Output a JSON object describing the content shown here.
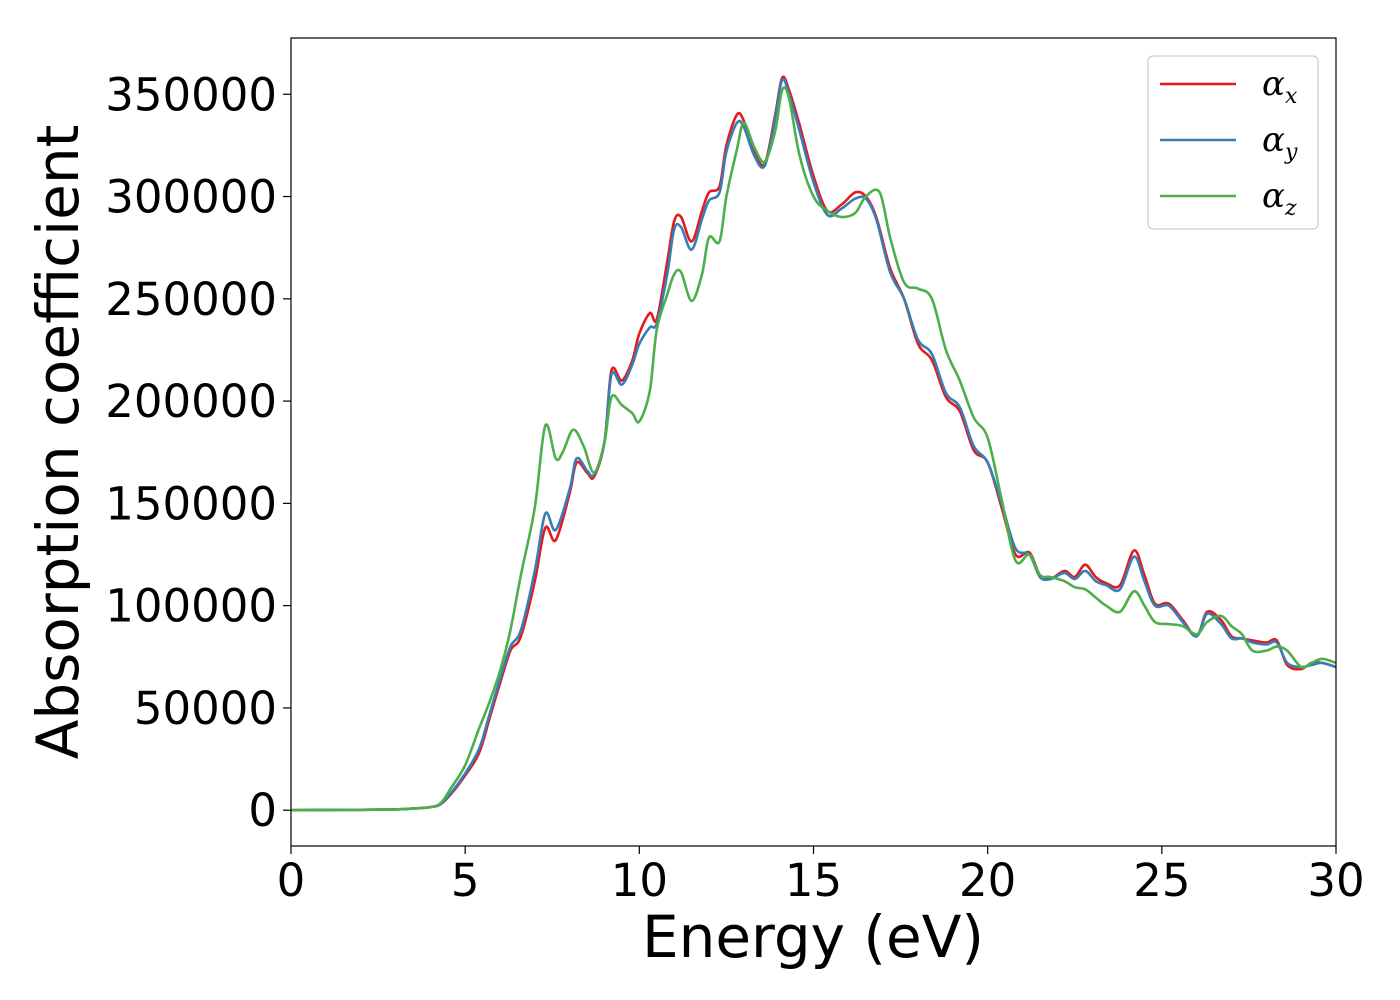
{
  "chart_data": {
    "type": "line",
    "title": "",
    "xlabel": "Energy (eV)",
    "ylabel": "Absorption coefficient",
    "xlim": [
      0,
      30
    ],
    "ylim": [
      -17500,
      377500
    ],
    "xticks": [
      0,
      5,
      10,
      15,
      20,
      25,
      30
    ],
    "yticks": [
      0,
      50000,
      100000,
      150000,
      200000,
      250000,
      300000,
      350000
    ],
    "grid": false,
    "legend_position": "top-right",
    "series": [
      {
        "name": "α_x",
        "legend_base": "α",
        "legend_sub": "x",
        "color": "#e41a1c",
        "x": [
          0,
          2,
          3,
          3.5,
          4,
          4.3,
          4.6,
          5,
          5.4,
          5.7,
          6,
          6.3,
          6.6,
          7,
          7.3,
          7.6,
          8,
          8.2,
          8.5,
          8.7,
          9,
          9.2,
          9.5,
          9.8,
          10,
          10.3,
          10.5,
          10.8,
          11,
          11.2,
          11.5,
          11.8,
          12,
          12.3,
          12.5,
          12.8,
          13,
          13.3,
          13.6,
          13.9,
          14.1,
          14.3,
          14.6,
          15,
          15.4,
          15.8,
          16.2,
          16.5,
          16.8,
          17.2,
          17.6,
          18,
          18.4,
          18.8,
          19.2,
          19.6,
          20,
          20.4,
          20.8,
          21.2,
          21.5,
          21.8,
          22.2,
          22.5,
          22.8,
          23.1,
          23.4,
          23.8,
          24.2,
          24.5,
          24.8,
          25.2,
          25.6,
          26,
          26.3,
          26.7,
          27,
          27.3,
          27.6,
          28,
          28.3,
          28.6,
          29,
          29.3,
          29.6,
          30
        ],
        "values": [
          0,
          200,
          400,
          800,
          1500,
          3000,
          8000,
          17000,
          28000,
          45000,
          62000,
          78000,
          85000,
          112000,
          138000,
          132000,
          155000,
          170000,
          165000,
          163000,
          180000,
          215000,
          210000,
          220000,
          233000,
          243000,
          240000,
          268000,
          288000,
          290000,
          278000,
          293000,
          302000,
          305000,
          325000,
          340000,
          337000,
          322000,
          316000,
          340000,
          358000,
          352000,
          335000,
          310000,
          293000,
          296000,
          302000,
          300000,
          290000,
          265000,
          250000,
          228000,
          220000,
          202000,
          195000,
          176000,
          170000,
          148000,
          125000,
          126000,
          115000,
          113000,
          117000,
          114000,
          120000,
          114000,
          111000,
          110000,
          127000,
          115000,
          101000,
          101000,
          93000,
          85000,
          97000,
          93000,
          85000,
          84000,
          83000,
          82000,
          83000,
          71000,
          69000,
          72000,
          72000,
          70000
        ]
      },
      {
        "name": "α_y",
        "legend_base": "α",
        "legend_sub": "y",
        "color": "#377eb8",
        "x": [
          0,
          2,
          3,
          3.5,
          4,
          4.3,
          4.6,
          5,
          5.4,
          5.7,
          6,
          6.3,
          6.6,
          7,
          7.3,
          7.6,
          8,
          8.2,
          8.5,
          8.7,
          9,
          9.2,
          9.5,
          9.8,
          10,
          10.3,
          10.5,
          10.8,
          11,
          11.2,
          11.5,
          11.8,
          12,
          12.3,
          12.5,
          12.8,
          13,
          13.3,
          13.6,
          13.9,
          14.1,
          14.3,
          14.6,
          15,
          15.4,
          15.8,
          16.2,
          16.5,
          16.8,
          17.2,
          17.6,
          18,
          18.4,
          18.8,
          19.2,
          19.6,
          20,
          20.4,
          20.8,
          21.2,
          21.5,
          21.8,
          22.2,
          22.5,
          22.8,
          23.1,
          23.4,
          23.8,
          24.2,
          24.5,
          24.8,
          25.2,
          25.6,
          26,
          26.3,
          26.7,
          27,
          27.3,
          27.6,
          28,
          28.3,
          28.6,
          29,
          29.3,
          29.6,
          30
        ],
        "values": [
          0,
          200,
          400,
          800,
          1500,
          3000,
          8500,
          18000,
          30000,
          47000,
          64000,
          80000,
          88000,
          117000,
          145000,
          137000,
          157000,
          172000,
          166000,
          164000,
          180000,
          213000,
          208000,
          218000,
          228000,
          236000,
          238000,
          262000,
          284000,
          285000,
          274000,
          289000,
          298000,
          302000,
          322000,
          336000,
          334000,
          320000,
          315000,
          338000,
          357000,
          350000,
          332000,
          307000,
          291000,
          294000,
          299000,
          299000,
          289000,
          263000,
          250000,
          230000,
          223000,
          204000,
          197000,
          178000,
          170000,
          150000,
          128000,
          125000,
          114000,
          113000,
          116000,
          113000,
          117000,
          112000,
          110000,
          108000,
          124000,
          112000,
          100000,
          100000,
          92000,
          85000,
          96000,
          91000,
          84000,
          84000,
          82000,
          81000,
          82000,
          72000,
          70000,
          71000,
          72000,
          70000
        ]
      },
      {
        "name": "α_z",
        "legend_base": "α",
        "legend_sub": "z",
        "color": "#4daf4a",
        "x": [
          0,
          2,
          3,
          3.5,
          4,
          4.3,
          4.6,
          5,
          5.4,
          5.7,
          6,
          6.3,
          6.6,
          7,
          7.3,
          7.6,
          7.8,
          8.1,
          8.4,
          8.7,
          9,
          9.2,
          9.5,
          9.8,
          10,
          10.3,
          10.5,
          10.8,
          11,
          11.2,
          11.5,
          11.8,
          12,
          12.3,
          12.5,
          12.8,
          13,
          13.3,
          13.6,
          13.9,
          14.1,
          14.3,
          14.6,
          15,
          15.4,
          15.8,
          16.2,
          16.5,
          16.9,
          17.2,
          17.6,
          18,
          18.4,
          18.8,
          19.2,
          19.6,
          20,
          20.4,
          20.8,
          21.2,
          21.5,
          21.8,
          22.2,
          22.5,
          22.8,
          23.1,
          23.4,
          23.8,
          24.2,
          24.5,
          24.8,
          25.2,
          25.6,
          26,
          26.3,
          26.7,
          27,
          27.3,
          27.6,
          28,
          28.3,
          28.6,
          29,
          29.3,
          29.6,
          30
        ],
        "values": [
          0,
          200,
          400,
          800,
          1500,
          3500,
          11000,
          22000,
          40000,
          53000,
          68000,
          88000,
          115000,
          148000,
          188000,
          172000,
          175000,
          186000,
          178000,
          165000,
          180000,
          202000,
          198000,
          194000,
          190000,
          205000,
          235000,
          252000,
          262000,
          263000,
          249000,
          262000,
          280000,
          278000,
          300000,
          323000,
          336000,
          324000,
          317000,
          332000,
          352000,
          348000,
          320000,
          300000,
          293000,
          290000,
          292000,
          300000,
          302000,
          280000,
          258000,
          255000,
          250000,
          225000,
          210000,
          192000,
          182000,
          152000,
          122000,
          125000,
          115000,
          114000,
          112000,
          109000,
          108000,
          104000,
          100000,
          97000,
          107000,
          100000,
          92000,
          91000,
          90000,
          86000,
          92000,
          95000,
          90000,
          86000,
          78000,
          78000,
          80000,
          78000,
          70000,
          72000,
          74000,
          72000
        ]
      }
    ]
  }
}
